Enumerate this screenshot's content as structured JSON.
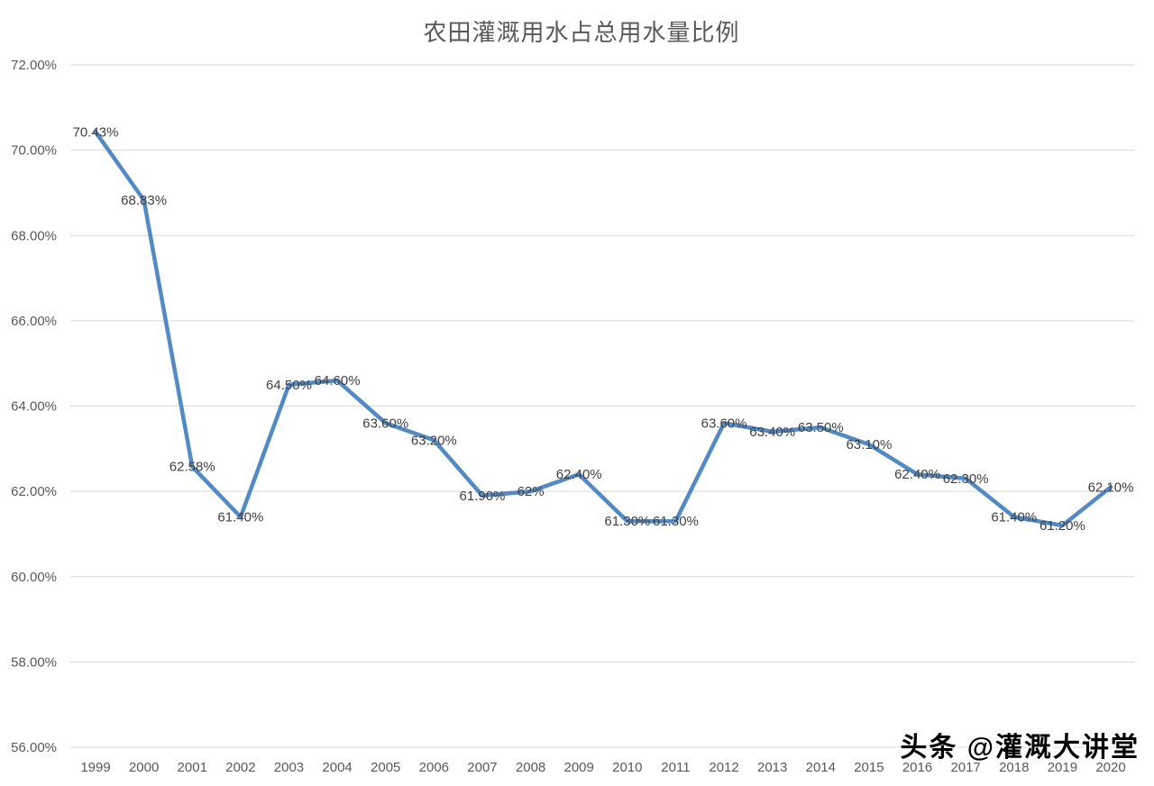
{
  "chart_data": {
    "type": "line",
    "title": "农田灌溉用水占总用水量比例",
    "x": [
      "1999",
      "2000",
      "2001",
      "2002",
      "2003",
      "2004",
      "2005",
      "2006",
      "2007",
      "2008",
      "2009",
      "2010",
      "2011",
      "2012",
      "2013",
      "2014",
      "2015",
      "2016",
      "2017",
      "2018",
      "2019",
      "2020"
    ],
    "series": [
      {
        "name": "农田灌溉用水占总用水量比例",
        "values": [
          70.43,
          68.83,
          62.58,
          61.4,
          64.5,
          64.6,
          63.6,
          63.2,
          61.9,
          62.0,
          62.4,
          61.3,
          61.3,
          63.6,
          63.4,
          63.5,
          63.1,
          62.4,
          62.3,
          61.4,
          61.2,
          62.1
        ],
        "color": "#4E8BC8"
      }
    ],
    "data_labels": [
      "70.43%",
      "68.83%",
      "62.58%",
      "61.40%",
      "64.50%",
      "64.60%",
      "63.60%",
      "63.20%",
      "61.90%",
      "62%",
      "62.40%",
      "61.30%",
      "61.30%",
      "63.60%",
      "63.40%",
      "63.50%",
      "63.10%",
      "62.40%",
      "62.30%",
      "61.40%",
      "61.20%",
      "62.10%"
    ],
    "ylabel": "",
    "xlabel": "",
    "ylim": [
      56,
      72
    ],
    "y_ticks": [
      {
        "value": 72,
        "label": "72.00%"
      },
      {
        "value": 70,
        "label": "70.00%"
      },
      {
        "value": 68,
        "label": "68.00%"
      },
      {
        "value": 66,
        "label": "66.00%"
      },
      {
        "value": 64,
        "label": "64.00%"
      },
      {
        "value": 62,
        "label": "62.00%"
      },
      {
        "value": 60,
        "label": "60.00%"
      },
      {
        "value": 58,
        "label": "58.00%"
      },
      {
        "value": 56,
        "label": "56.00%"
      }
    ],
    "grid": "horizontal",
    "legend": "none",
    "colors": {
      "grid": "#D9D9D9",
      "tick_text": "#595959",
      "data_label_text": "#404040",
      "title_text": "#595959",
      "background": "#FFFFFF"
    }
  },
  "watermark": {
    "text": "头条 @灌溉大讲堂"
  }
}
